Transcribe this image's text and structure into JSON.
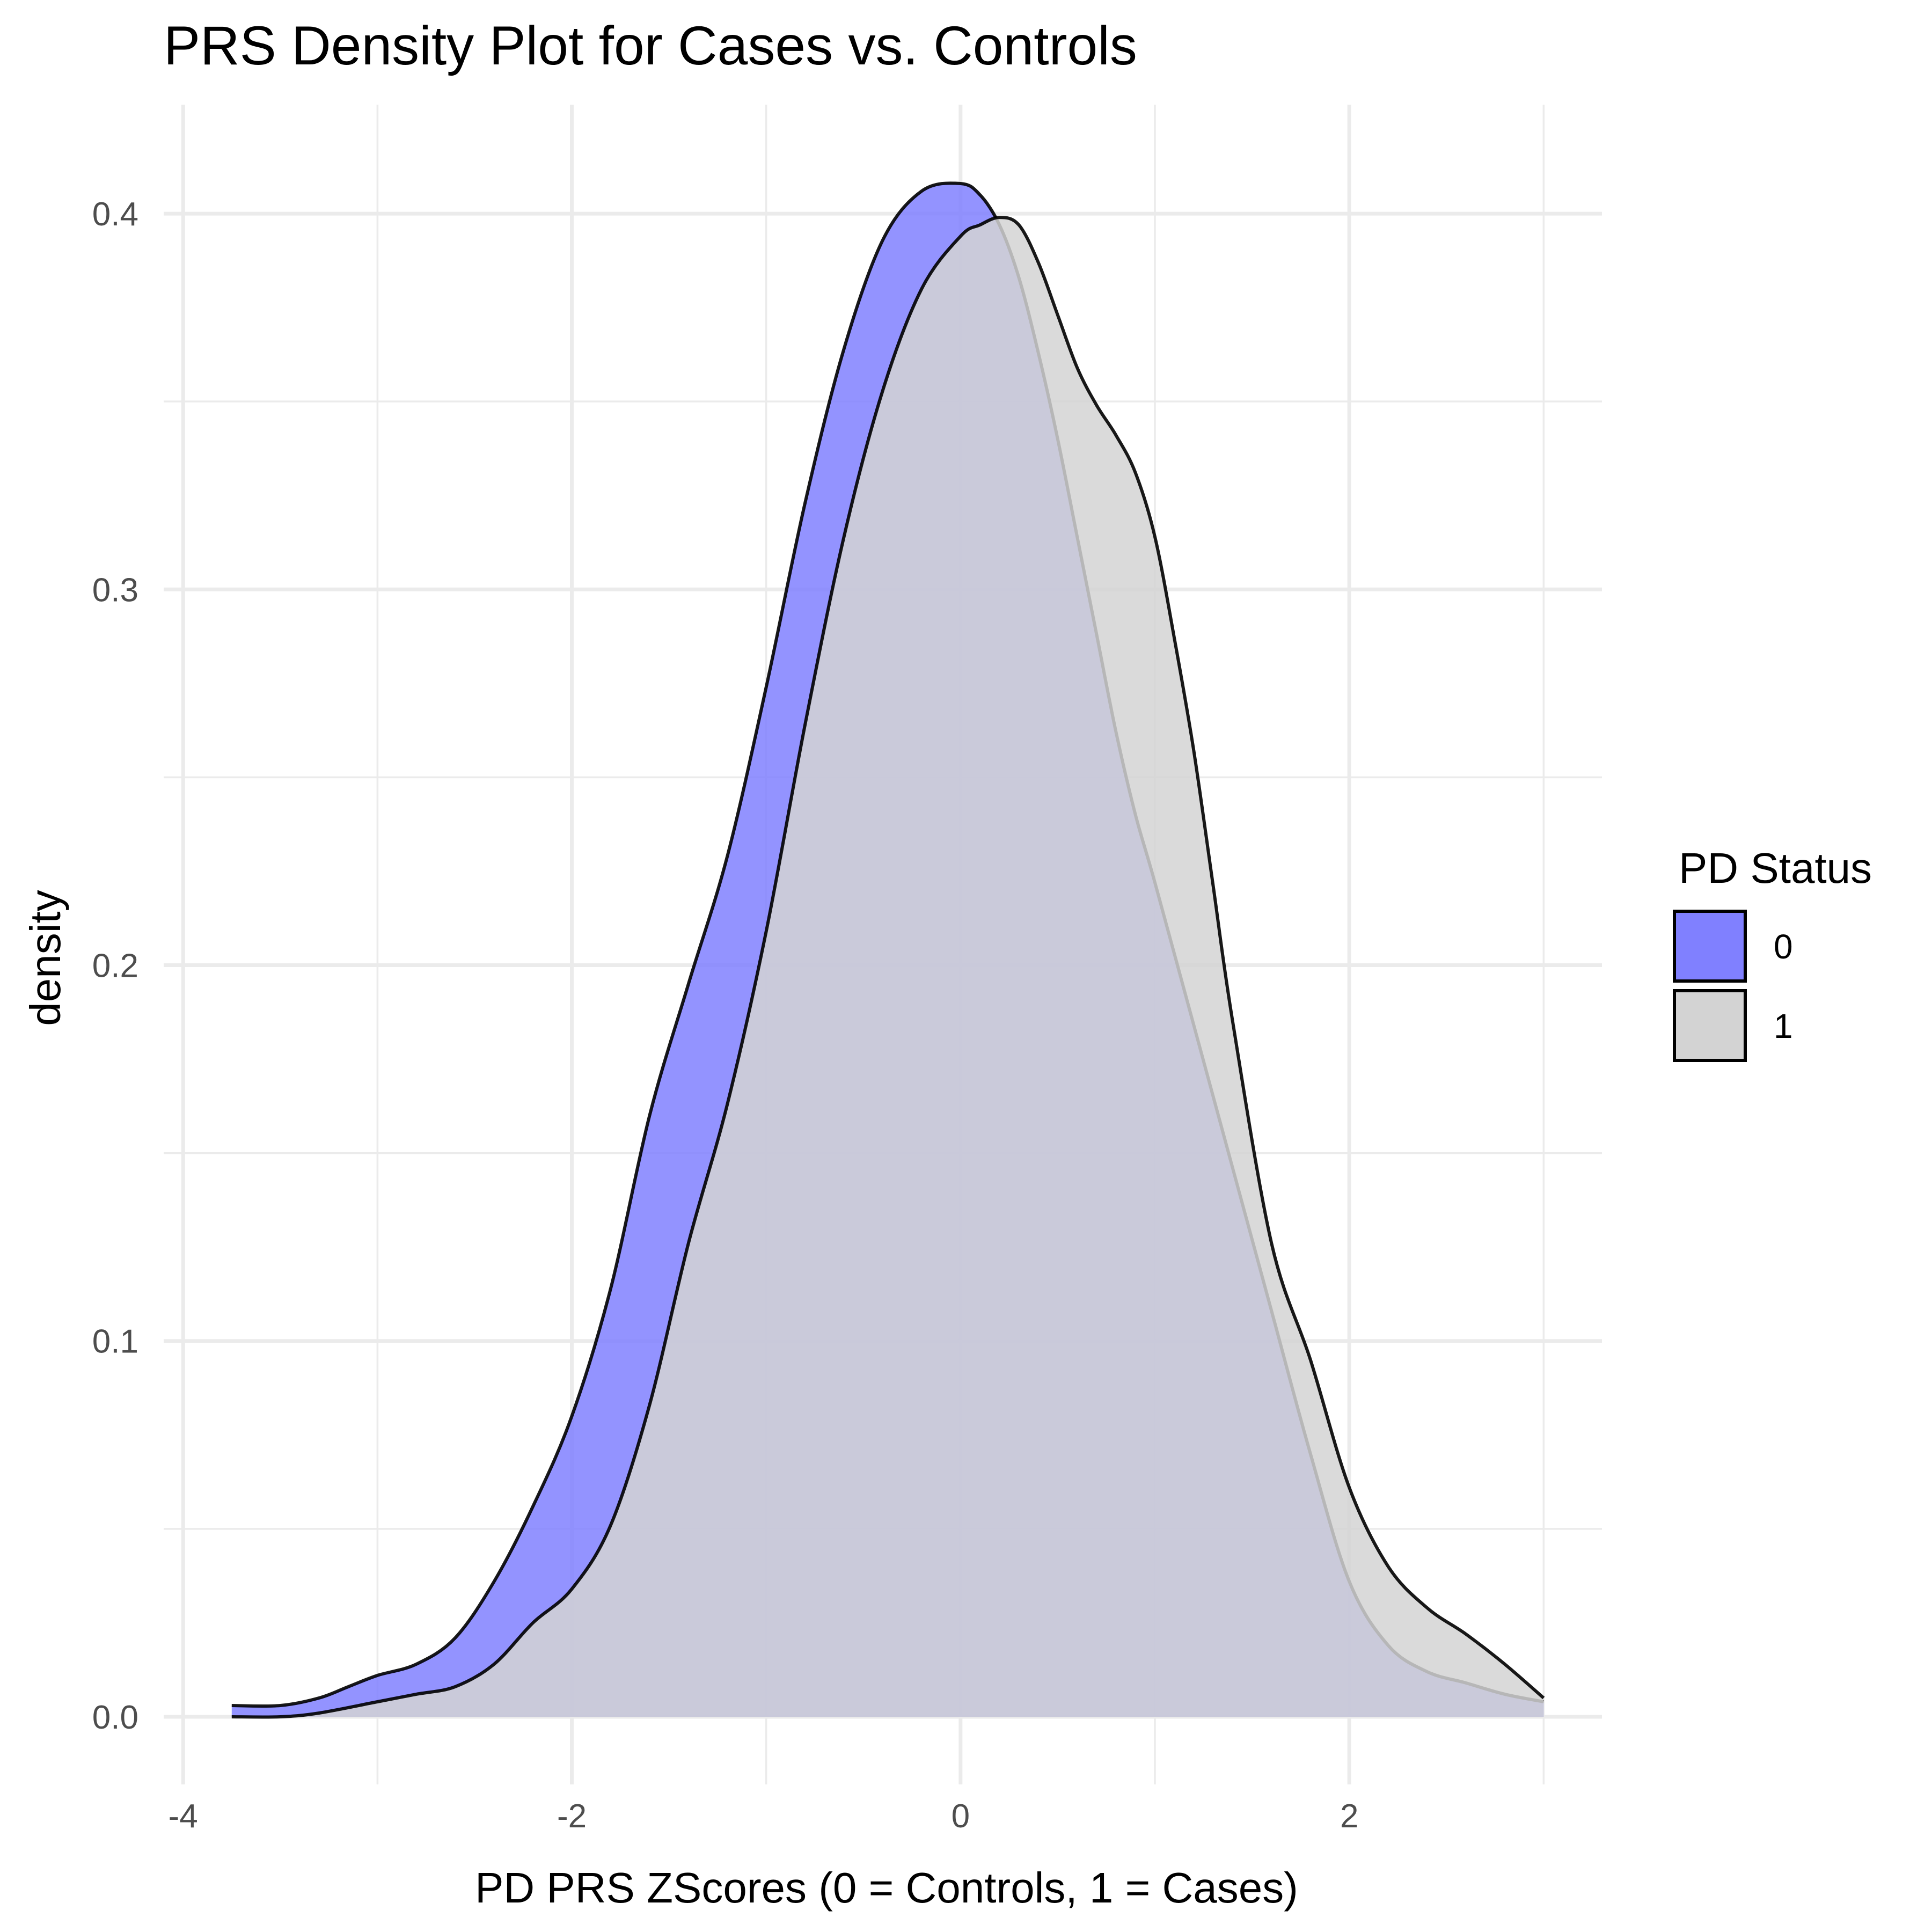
{
  "chart_data": {
    "type": "area",
    "title": "PRS Density Plot for Cases vs. Controls",
    "xlabel": "PD PRS ZScores (0 = Controls, 1 = Cases)",
    "ylabel": "density",
    "xlim": [
      -4.1,
      3.3
    ],
    "ylim": [
      -0.018,
      0.429
    ],
    "x_ticks": [
      -4,
      -2,
      0,
      2
    ],
    "x_tick_labels": [
      "-4",
      "-2",
      "0",
      "2"
    ],
    "y_ticks": [
      0.0,
      0.1,
      0.2,
      0.3,
      0.4
    ],
    "y_tick_labels": [
      "0.0",
      "0.1",
      "0.2",
      "0.3",
      "0.4"
    ],
    "grid": true,
    "legend": {
      "title": "PD Status",
      "position": "right"
    },
    "series": [
      {
        "name": "0",
        "color": "#8080ff",
        "x": [
          -3.75,
          -3.5,
          -3.3,
          -3.15,
          -3.0,
          -2.8,
          -2.6,
          -2.4,
          -2.2,
          -2.0,
          -1.8,
          -1.6,
          -1.4,
          -1.2,
          -1.0,
          -0.8,
          -0.6,
          -0.4,
          -0.2,
          0.0,
          0.1,
          0.2,
          0.3,
          0.4,
          0.5,
          0.6,
          0.7,
          0.8,
          0.9,
          1.0,
          1.2,
          1.4,
          1.6,
          1.8,
          2.0,
          2.2,
          2.4,
          2.6,
          2.8,
          3.0
        ],
        "y": [
          0.003,
          0.003,
          0.005,
          0.008,
          0.011,
          0.014,
          0.021,
          0.036,
          0.056,
          0.08,
          0.114,
          0.16,
          0.195,
          0.229,
          0.274,
          0.323,
          0.364,
          0.393,
          0.406,
          0.408,
          0.405,
          0.397,
          0.383,
          0.363,
          0.34,
          0.314,
          0.288,
          0.262,
          0.24,
          0.222,
          0.184,
          0.146,
          0.108,
          0.07,
          0.036,
          0.019,
          0.012,
          0.009,
          0.006,
          0.004
        ]
      },
      {
        "name": "1",
        "color": "#d3d3d3",
        "x": [
          -3.75,
          -3.5,
          -3.3,
          -3.0,
          -2.8,
          -2.6,
          -2.4,
          -2.2,
          -2.0,
          -1.8,
          -1.6,
          -1.4,
          -1.2,
          -1.0,
          -0.8,
          -0.6,
          -0.4,
          -0.2,
          0.0,
          0.1,
          0.2,
          0.3,
          0.4,
          0.5,
          0.6,
          0.7,
          0.8,
          0.9,
          1.0,
          1.1,
          1.2,
          1.3,
          1.4,
          1.6,
          1.8,
          2.0,
          2.2,
          2.4,
          2.6,
          2.8,
          3.0
        ],
        "y": [
          0.0,
          0.0,
          0.001,
          0.004,
          0.006,
          0.008,
          0.014,
          0.025,
          0.034,
          0.051,
          0.083,
          0.126,
          0.163,
          0.209,
          0.264,
          0.314,
          0.353,
          0.38,
          0.394,
          0.397,
          0.399,
          0.397,
          0.387,
          0.373,
          0.359,
          0.349,
          0.341,
          0.331,
          0.314,
          0.287,
          0.257,
          0.221,
          0.185,
          0.126,
          0.095,
          0.061,
          0.04,
          0.029,
          0.022,
          0.014,
          0.005
        ]
      }
    ]
  }
}
